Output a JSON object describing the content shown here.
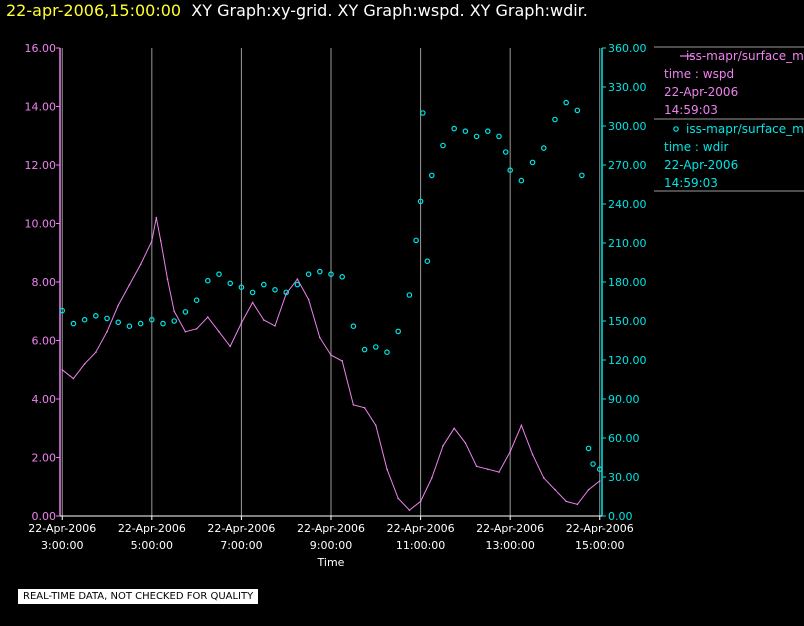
{
  "header": {
    "timestamp": "22-apr-2006,15:00:00",
    "graphs": "XY Graph:xy-grid.  XY Graph:wspd.  XY Graph:wdir."
  },
  "colors": {
    "wspd": "#ee82ee",
    "wdir": "#00e5e5",
    "grid": "#9a9a9a",
    "axis_text": "#ffffff"
  },
  "legend": [
    {
      "marker": "line",
      "lines": [
        "iss-mapr/surface_m",
        "time : wspd",
        "22-Apr-2006",
        "14:59:03"
      ]
    },
    {
      "marker": "circle",
      "lines": [
        "iss-mapr/surface_m",
        "time : wdir",
        "22-Apr-2006",
        "14:59:03"
      ]
    }
  ],
  "disclaimer": "REAL-TIME DATA, NOT CHECKED FOR QUALITY",
  "chart_data": {
    "type": "line",
    "xlabel": "Time",
    "x_range_hours": [
      2.95,
      15.05
    ],
    "x_ticks": [
      {
        "date": "22-Apr-2006",
        "time": "3:00:00",
        "hour": 3
      },
      {
        "date": "22-Apr-2006",
        "time": "5:00:00",
        "hour": 5
      },
      {
        "date": "22-Apr-2006",
        "time": "7:00:00",
        "hour": 7
      },
      {
        "date": "22-Apr-2006",
        "time": "9:00:00",
        "hour": 9
      },
      {
        "date": "22-Apr-2006",
        "time": "11:00:00",
        "hour": 11
      },
      {
        "date": "22-Apr-2006",
        "time": "13:00:00",
        "hour": 13
      },
      {
        "date": "22-Apr-2006",
        "time": "15:00:00",
        "hour": 15
      }
    ],
    "y_left": {
      "range": [
        0,
        16
      ],
      "ticks": [
        "0.00",
        "2.00",
        "4.00",
        "6.00",
        "8.00",
        "10.00",
        "12.00",
        "14.00",
        "16.00"
      ]
    },
    "y_right": {
      "range": [
        0,
        360
      ],
      "ticks": [
        "0.00",
        "30.00",
        "60.00",
        "90.00",
        "120.00",
        "150.00",
        "180.00",
        "210.00",
        "240.00",
        "270.00",
        "300.00",
        "330.00",
        "360.00"
      ]
    },
    "grid": "vertical",
    "series": [
      {
        "axis": "left",
        "style": "line",
        "hours": [
          3.0,
          3.25,
          3.5,
          3.75,
          4.0,
          4.25,
          4.5,
          4.75,
          5.0,
          5.1,
          5.2,
          5.35,
          5.5,
          5.75,
          6.0,
          6.25,
          6.5,
          6.75,
          7.0,
          7.25,
          7.5,
          7.75,
          8.0,
          8.25,
          8.5,
          8.75,
          9.0,
          9.25,
          9.5,
          9.75,
          10.0,
          10.25,
          10.5,
          10.75,
          11.0,
          11.25,
          11.5,
          11.75,
          12.0,
          12.25,
          12.5,
          12.75,
          13.0,
          13.25,
          13.5,
          13.75,
          14.0,
          14.25,
          14.5,
          14.75,
          15.0
        ],
        "values": [
          5.0,
          4.7,
          5.2,
          5.6,
          6.3,
          7.2,
          7.9,
          8.6,
          9.4,
          10.2,
          9.4,
          8.1,
          7.0,
          6.3,
          6.4,
          6.8,
          6.3,
          5.8,
          6.6,
          7.3,
          6.7,
          6.5,
          7.6,
          8.1,
          7.4,
          6.1,
          5.5,
          5.3,
          3.8,
          3.7,
          3.1,
          1.6,
          0.6,
          0.2,
          0.5,
          1.3,
          2.4,
          3.0,
          2.5,
          1.7,
          1.6,
          1.5,
          2.2,
          3.1,
          2.1,
          1.3,
          0.9,
          0.5,
          0.4,
          0.9,
          1.2
        ]
      },
      {
        "axis": "right",
        "style": "circle",
        "hours": [
          3.0,
          3.25,
          3.5,
          3.75,
          4.0,
          4.25,
          4.5,
          4.75,
          5.0,
          5.25,
          5.5,
          5.75,
          6.0,
          6.25,
          6.5,
          6.75,
          7.0,
          7.25,
          7.5,
          7.75,
          8.0,
          8.25,
          8.5,
          8.75,
          9.0,
          9.25,
          9.5,
          9.75,
          10.0,
          10.25,
          10.5,
          10.75,
          10.9,
          11.0,
          11.05,
          11.15,
          11.25,
          11.5,
          11.75,
          12.0,
          12.25,
          12.5,
          12.75,
          12.9,
          13.0,
          13.25,
          13.5,
          13.75,
          14.0,
          14.25,
          14.5,
          14.6,
          14.75,
          14.85,
          15.0
        ],
        "values": [
          158,
          148,
          151,
          154,
          152,
          149,
          146,
          148,
          151,
          148,
          150,
          157,
          166,
          181,
          186,
          179,
          176,
          172,
          178,
          174,
          172,
          178,
          186,
          188,
          186,
          184,
          146,
          128,
          130,
          126,
          142,
          170,
          212,
          242,
          310,
          196,
          262,
          285,
          298,
          296,
          292,
          296,
          292,
          280,
          266,
          258,
          272,
          283,
          305,
          318,
          312,
          262,
          52,
          40,
          36
        ]
      }
    ]
  }
}
